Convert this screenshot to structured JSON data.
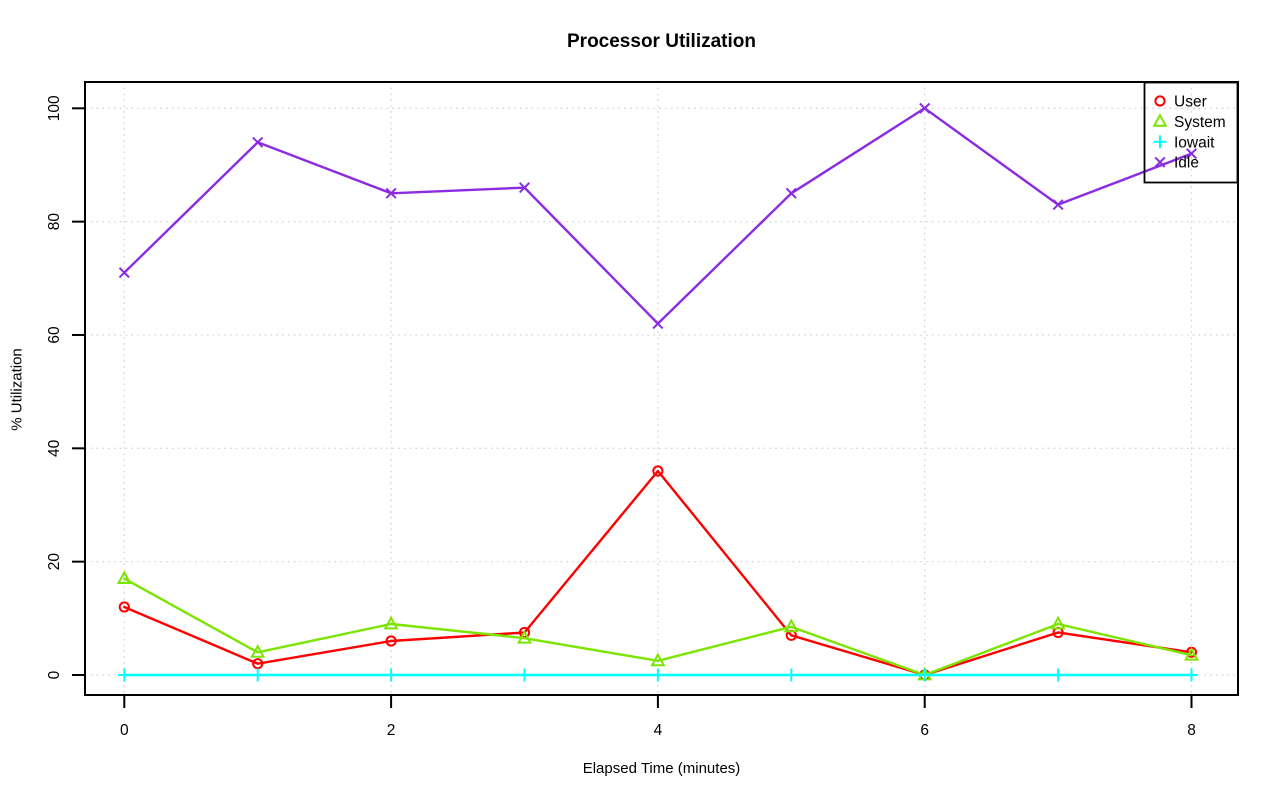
{
  "title": "Processor Utilization",
  "chart_data": {
    "type": "line",
    "title": "Processor Utilization",
    "xlabel": "Elapsed Time (minutes)",
    "ylabel": "% Utilization",
    "x": [
      0,
      1,
      2,
      3,
      4,
      5,
      6,
      7,
      8
    ],
    "x_ticks": [
      0,
      2,
      4,
      6,
      8
    ],
    "y_ticks": [
      0,
      20,
      40,
      60,
      80,
      100
    ],
    "xlim": [
      0,
      8
    ],
    "ylim": [
      0,
      100
    ],
    "grid": true,
    "legend_position": "topright",
    "series": [
      {
        "name": "User",
        "color": "#ff0000",
        "marker": "circle",
        "values": [
          12,
          2,
          6,
          7.5,
          36,
          7,
          0,
          7.5,
          4
        ]
      },
      {
        "name": "System",
        "color": "#7ce500",
        "marker": "triangle",
        "values": [
          17,
          4,
          9,
          6.5,
          2.5,
          8.5,
          0,
          9,
          3.5
        ]
      },
      {
        "name": "Iowait",
        "color": "#00ffff",
        "marker": "plus",
        "values": [
          0,
          0,
          0,
          0,
          0,
          0,
          0,
          0,
          0
        ]
      },
      {
        "name": "Idle",
        "color": "#8b2be2",
        "marker": "x",
        "values": [
          71,
          94,
          85,
          86,
          62,
          85,
          100,
          83,
          92
        ]
      }
    ]
  },
  "colors": {
    "background": "#ffffff",
    "axis": "#000000",
    "grid": "#d4d4d4",
    "tick_label": "#000000"
  }
}
